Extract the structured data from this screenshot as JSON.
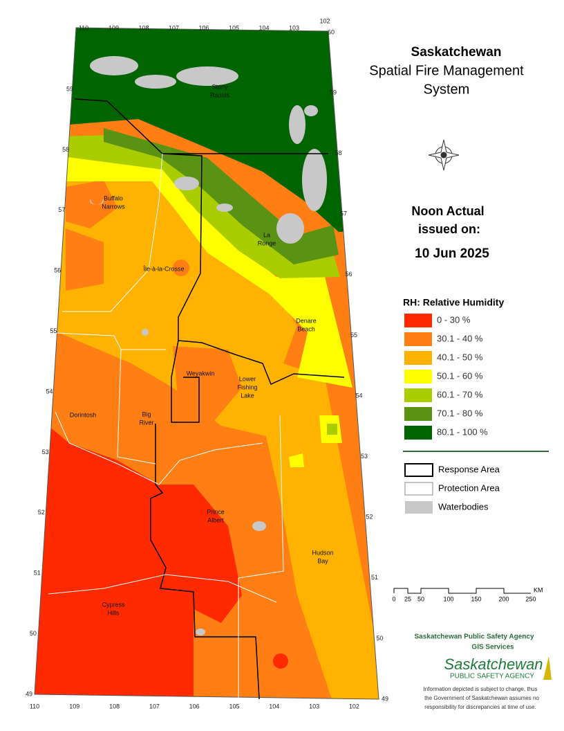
{
  "header": {
    "title": "Saskatchewan",
    "subtitle": [
      "Spatial Fire Management",
      "System"
    ]
  },
  "issue": {
    "label": [
      "Noon Actual",
      "issued on:"
    ],
    "date": "10 Jun 2025"
  },
  "legend": {
    "title": "RH: Relative Humidity",
    "items": [
      {
        "label": "0 - 30 %",
        "color": "#ff2a00"
      },
      {
        "label": "30.1 - 40 %",
        "color": "#ff7f14"
      },
      {
        "label": "40.1 - 50 %",
        "color": "#ffb300"
      },
      {
        "label": "50.1 - 60 %",
        "color": "#ffff00"
      },
      {
        "label": "60.1 - 70 %",
        "color": "#aacd00"
      },
      {
        "label": "70.1 - 80 %",
        "color": "#5a9214"
      },
      {
        "label": "80.1 - 100 %",
        "color": "#006400"
      }
    ],
    "other": [
      "Response Area",
      "Protection Area",
      "Waterbodies"
    ]
  },
  "scale": {
    "labels": [
      "0",
      "25",
      "50",
      "100",
      "150",
      "200",
      "250"
    ],
    "unit": "KM"
  },
  "agency": {
    "name": "Saskatchewan Public Safety Agency",
    "unit": "GIS  Services",
    "logo": [
      "Saskatchewan",
      "PUBLIC SAFETY AGENCY"
    ],
    "disclaimer": [
      "Information depicted is subject to change, thus",
      "the Government of Saskatchewan assumes no",
      "responsibility for discrepancies at time of use."
    ]
  },
  "map": {
    "places": [
      [
        "Stony",
        "Rapids"
      ],
      [
        "Buffalo",
        "Narrows"
      ],
      [
        "Île-à-la-Crosse"
      ],
      [
        "La",
        "Ronge"
      ],
      [
        "Denare",
        "Beach"
      ],
      [
        "Weyakwin"
      ],
      [
        "Lower",
        "Fishing",
        "Lake"
      ],
      [
        "Dorintosh"
      ],
      [
        "Big",
        "River"
      ],
      [
        "Prince",
        "Albert"
      ],
      [
        "Hudson",
        "Bay"
      ],
      [
        "Cypress",
        "Hills"
      ]
    ],
    "lon_top": [
      110,
      109,
      108,
      107,
      106,
      105,
      104,
      103,
      102
    ],
    "lon_bottom": [
      110,
      109,
      108,
      107,
      106,
      105,
      104,
      103,
      102
    ],
    "lat_left": [
      59,
      58,
      57,
      56,
      55,
      54,
      53,
      52,
      51,
      50,
      49
    ],
    "lat_right": [
      60,
      59,
      58,
      57,
      56,
      55,
      54,
      53,
      52,
      51,
      50,
      49
    ]
  }
}
